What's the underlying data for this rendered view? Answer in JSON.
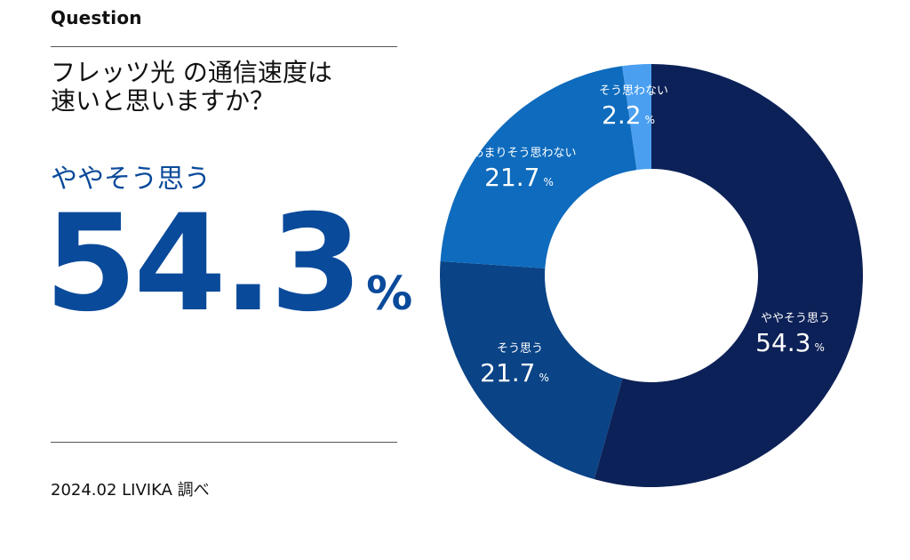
{
  "eyebrow": "Question",
  "title": {
    "line1": "フレッツ光 の通信速度は",
    "line2": "速いと思いますか？"
  },
  "highlight": {
    "label": "ややそう思う",
    "value": "54.3",
    "unit": "%"
  },
  "source": "2024.02 LIVIKA 調べ",
  "chart_data": {
    "type": "pie",
    "donut": true,
    "title": "",
    "slices": [
      {
        "label": "ややそう思う",
        "value": 54.3,
        "color": "#0c2157"
      },
      {
        "label": "そう思う",
        "value": 21.7,
        "color": "#0a4386"
      },
      {
        "label": "あまりそう思わない",
        "value": 21.7,
        "color": "#0e6bbd"
      },
      {
        "label": "そう思わない",
        "value": 2.2,
        "color": "#4a9ff0"
      }
    ],
    "unit": "%"
  }
}
